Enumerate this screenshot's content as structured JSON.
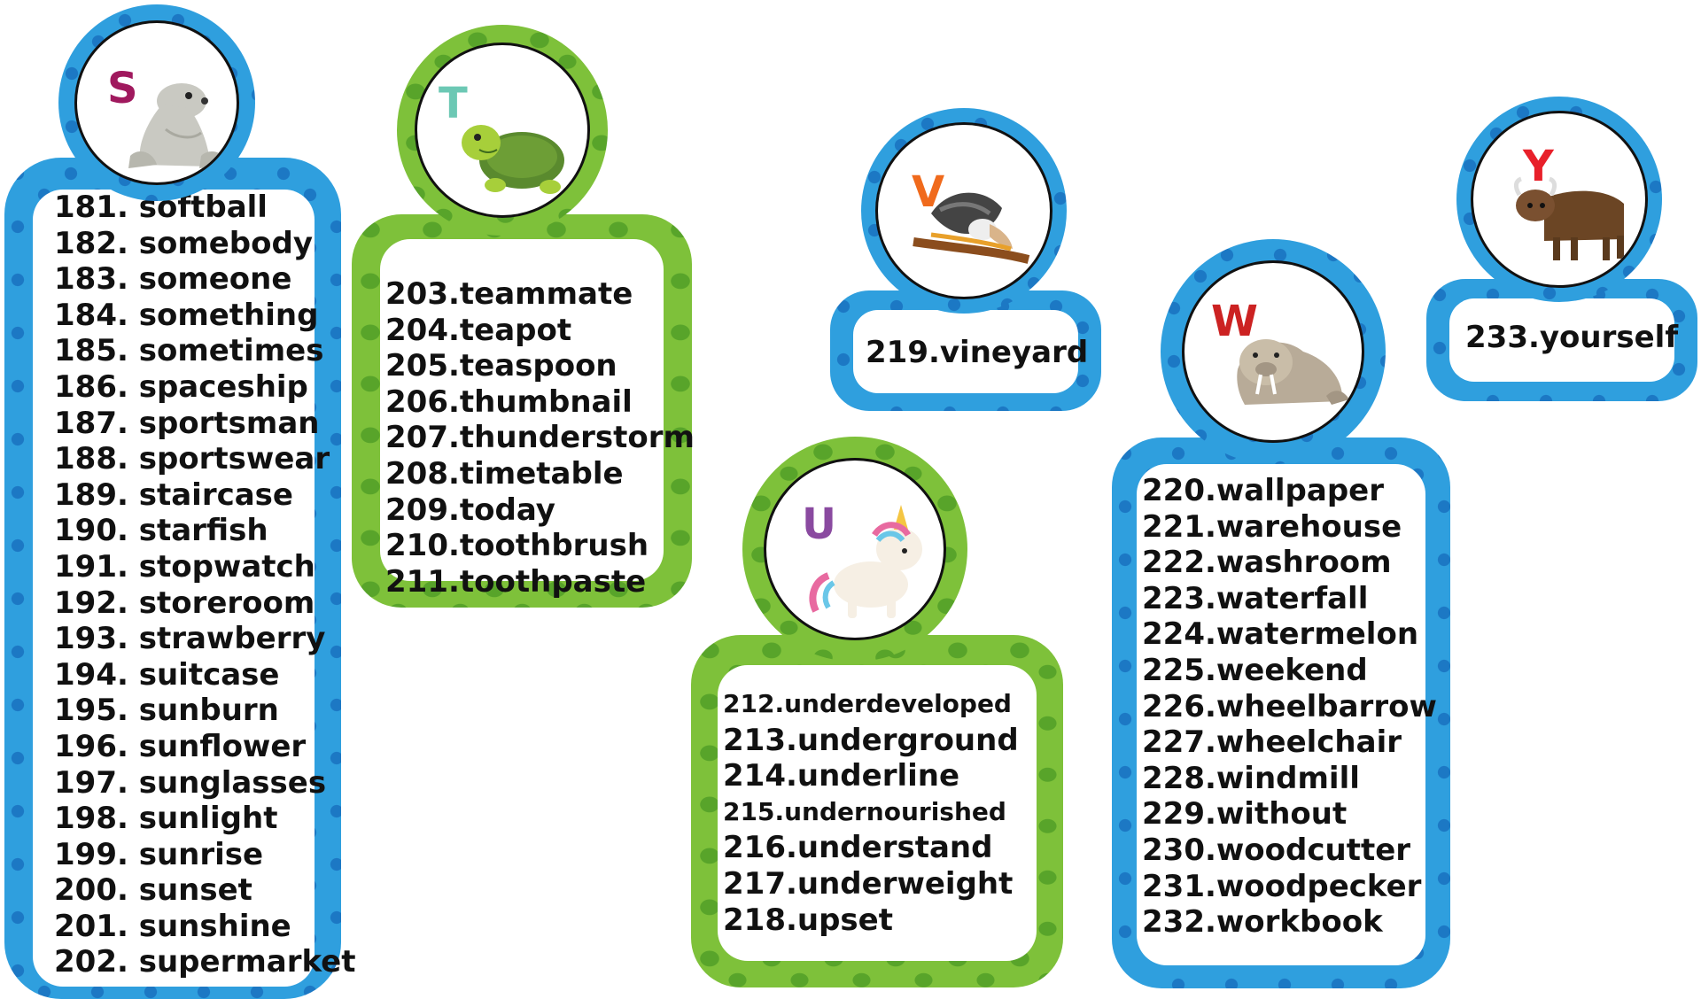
{
  "groups": {
    "s": {
      "letter": "S",
      "letter_color": "#a0195e",
      "animal": "seal-icon",
      "theme": "blue",
      "words": [
        "181. softball",
        "182. somebody",
        "183. someone",
        "184. something",
        "185. sometimes",
        "186. spaceship",
        "187. sportsman",
        "188. sportswear",
        "189. staircase",
        "190. starfish",
        "191. stopwatch",
        "192. storeroom",
        "193. strawberry",
        "194. suitcase",
        "195. sunburn",
        "196. sunflower",
        "197. sunglasses",
        "198. sunlight",
        "199. sunrise",
        "200. sunset",
        "201. sunshine",
        "202. supermarket"
      ]
    },
    "t": {
      "letter": "T",
      "letter_color": "#6cc8b4",
      "animal": "turtle-icon",
      "theme": "green",
      "words": [
        "203.teammate",
        "204.teapot",
        "205.teaspoon",
        "206.thumbnail",
        "207.thunderstorm",
        "208.timetable",
        "209.today",
        "210.toothbrush",
        "211.toothpaste"
      ]
    },
    "u": {
      "letter": "U",
      "letter_color": "#8a4aa0",
      "animal": "unicorn-icon",
      "theme": "green",
      "words": [
        "212.underdeveloped",
        "213.underground",
        "214.underline",
        "215.undernourished",
        "216.understand",
        "217.underweight",
        "218.upset"
      ]
    },
    "v": {
      "letter": "V",
      "letter_color": "#f06a1c",
      "animal": "vulture-icon",
      "theme": "blue",
      "words": [
        "219.vineyard"
      ]
    },
    "w": {
      "letter": "W",
      "letter_color": "#cc2222",
      "animal": "walrus-icon",
      "theme": "blue",
      "words": [
        "220.wallpaper",
        "221.warehouse",
        "222.washroom",
        "223.waterfall",
        "224.watermelon",
        "225.weekend",
        "226.wheelbarrow",
        "227.wheelchair",
        "228.windmill",
        "229.without",
        "230.woodcutter",
        "231.woodpecker",
        "232.workbook"
      ]
    },
    "y": {
      "letter": "Y",
      "letter_color": "#e8202a",
      "animal": "yak-icon",
      "theme": "blue",
      "words": [
        "233.yourself"
      ]
    }
  }
}
